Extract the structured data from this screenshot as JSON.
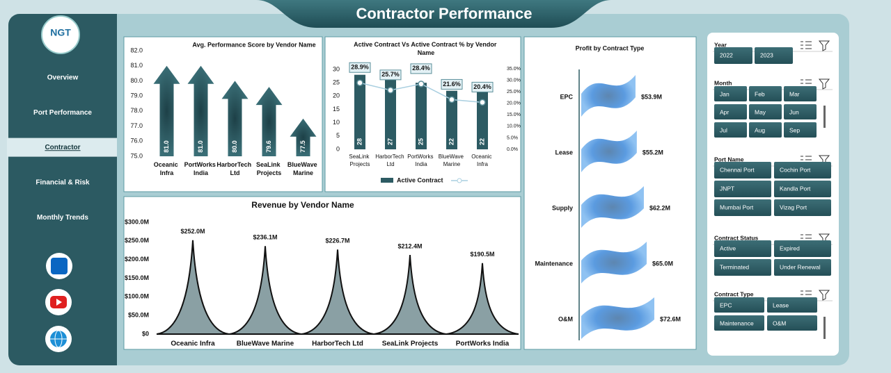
{
  "header": {
    "title": "Contractor Performance",
    "logo": "NGT"
  },
  "nav": [
    "Overview",
    "Port Performance",
    "Contractor",
    "Financial & Risk",
    "Monthly Trends"
  ],
  "chart_data": [
    {
      "type": "bar",
      "shape": "arrow",
      "title": "Avg. Performance Score by Vendor Name",
      "categories": [
        "Oceanic Infra",
        "PortWorks India",
        "HarborTech Ltd",
        "SeaLink Projects",
        "BlueWave Marine"
      ],
      "values": [
        81.0,
        81.0,
        80.0,
        79.6,
        77.5
      ],
      "value_labels": [
        "81.0",
        "81.0",
        "80.0",
        "79.6",
        "77.5"
      ],
      "color": "#2d5b63",
      "ylim": [
        75,
        82
      ],
      "yticks": [
        {
          "value": 75,
          "label": "75.0"
        },
        {
          "value": 76,
          "label": "76.0"
        },
        {
          "value": 77,
          "label": "77.0"
        },
        {
          "value": 78,
          "label": "78.0"
        },
        {
          "value": 79,
          "label": "79.0"
        },
        {
          "value": 80,
          "label": "80.0"
        },
        {
          "value": 81,
          "label": "81.0"
        },
        {
          "value": 82,
          "label": "82.0"
        }
      ]
    },
    {
      "type": "bar",
      "title": "Active Contract Vs Active Contract %  by Vendor Name",
      "categories": [
        "SeaLink Projects",
        "HarborTech Ltd",
        "PortWorks India",
        "BlueWave Marine",
        "Oceanic Infra"
      ],
      "series": [
        {
          "name": "Active Contract",
          "type": "bar",
          "color": "#2d5b63",
          "values": [
            28,
            27,
            25,
            22,
            22
          ]
        },
        {
          "type": "line",
          "axis": "y2",
          "color": "#a9cfe0",
          "values": [
            28.9,
            25.7,
            28.4,
            21.6,
            20.4
          ],
          "value_labels": [
            "28.9%",
            "25.7%",
            "28.4%",
            "21.6%",
            "20.4%"
          ]
        }
      ],
      "ylim": [
        0,
        30
      ],
      "yticks": [
        0,
        5,
        10,
        15,
        20,
        25,
        30
      ],
      "y2lim": [
        0,
        35
      ],
      "y2ticks": [
        {
          "value": 0,
          "label": "0.0%"
        },
        {
          "value": 5,
          "label": "5.0%"
        },
        {
          "value": 10,
          "label": "10.0%"
        },
        {
          "value": 15,
          "label": "15.0%"
        },
        {
          "value": 20,
          "label": "20.0%"
        },
        {
          "value": 25,
          "label": "25.0%"
        },
        {
          "value": 30,
          "label": "30.0%"
        },
        {
          "value": 35,
          "label": "35.0%"
        }
      ],
      "legend": "bottom"
    },
    {
      "type": "bar",
      "shape": "spike",
      "title": "Revenue by Vendor Name",
      "categories": [
        "Oceanic Infra",
        "BlueWave Marine",
        "HarborTech Ltd",
        "SeaLink Projects",
        "PortWorks India"
      ],
      "values": [
        252.0,
        236.1,
        226.7,
        212.4,
        190.5
      ],
      "value_labels": [
        "$252.0M",
        "$236.1M",
        "$226.7M",
        "$212.4M",
        "$190.5M"
      ],
      "color": "#8aa0a4",
      "ylim": [
        0,
        300
      ],
      "yticks": [
        {
          "value": 0,
          "label": "$0"
        },
        {
          "value": 50,
          "label": "$50.0M"
        },
        {
          "value": 100,
          "label": "$100.0M"
        },
        {
          "value": 150,
          "label": "$150.0M"
        },
        {
          "value": 200,
          "label": "$200.0M"
        },
        {
          "value": 250,
          "label": "$250.0M"
        },
        {
          "value": 300,
          "label": "$300.0M"
        }
      ]
    },
    {
      "type": "bar",
      "shape": "flag",
      "orientation": "horizontal",
      "title": "Profit by Contract Type",
      "categories": [
        "EPC",
        "Lease",
        "Supply",
        "Maintenance",
        "O&M"
      ],
      "values": [
        53.9,
        55.2,
        62.2,
        65.0,
        72.6
      ],
      "value_labels": [
        "$53.9M",
        "$55.2M",
        "$62.2M",
        "$65.0M",
        "$72.6M"
      ],
      "color": "#4a90e2"
    }
  ],
  "slicers": [
    {
      "title": "Year",
      "items": [
        "2022",
        "2023"
      ]
    },
    {
      "title": "Month",
      "items": [
        "Jan",
        "Feb",
        "Mar",
        "Apr",
        "May",
        "Jun",
        "Jul",
        "Aug",
        "Sep"
      ]
    },
    {
      "title": "Port Name",
      "items": [
        "Chennai Port",
        "Cochin Port",
        "JNPT",
        "Kandla Port",
        "Mumbai Port",
        "Vizag Port"
      ]
    },
    {
      "title": "Contract Status",
      "items": [
        "Active",
        "Expired",
        "Terminated",
        "Under Renewal"
      ]
    },
    {
      "title": "Contract Type",
      "items": [
        "EPC",
        "Lease",
        "Maintenance",
        "O&M"
      ]
    }
  ]
}
